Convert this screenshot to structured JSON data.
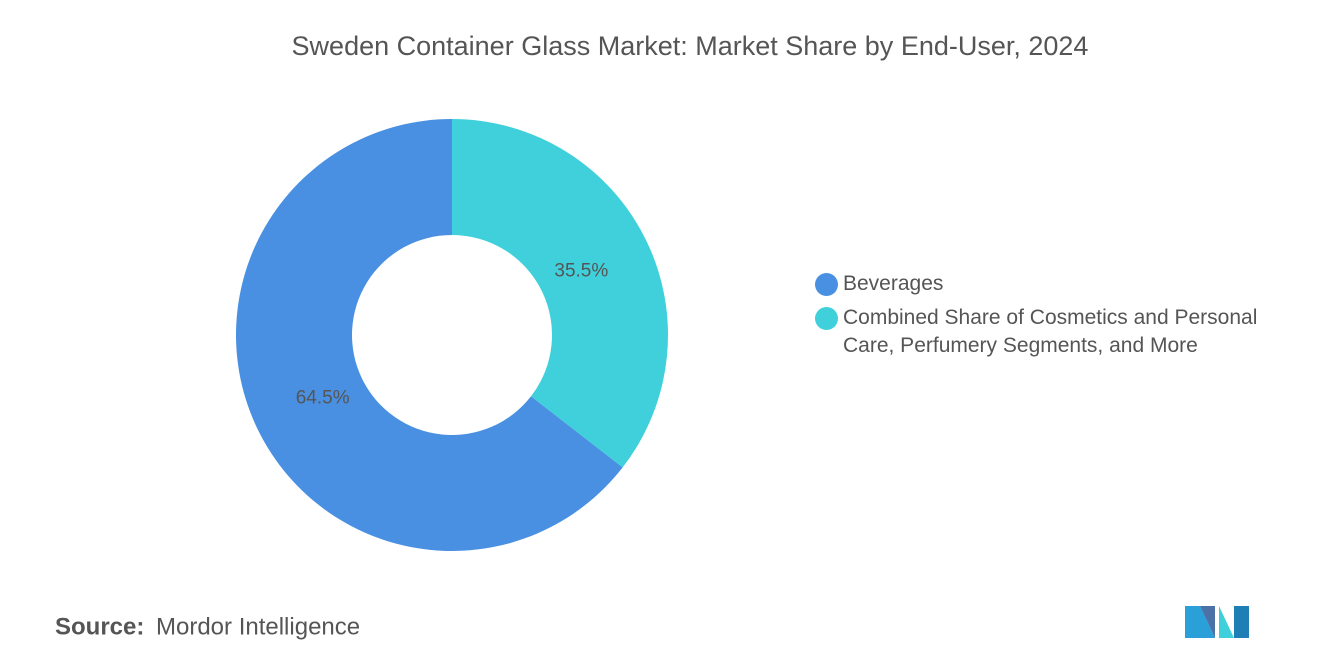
{
  "chart_data": {
    "type": "pie",
    "title": "Sweden Container Glass Market: Market Share by End-User, 2024",
    "categories": [
      "Beverages",
      "Combined Share of Cosmetics and Personal Care, Perfumery Segments, and More"
    ],
    "values": [
      64.5,
      35.5
    ],
    "value_labels": [
      "64.5%",
      "35.5%"
    ],
    "colors": [
      "#4a90e2",
      "#3fd0db"
    ],
    "donut": true,
    "legend": "right",
    "source_label": "Source:",
    "source": "Mordor Intelligence"
  }
}
